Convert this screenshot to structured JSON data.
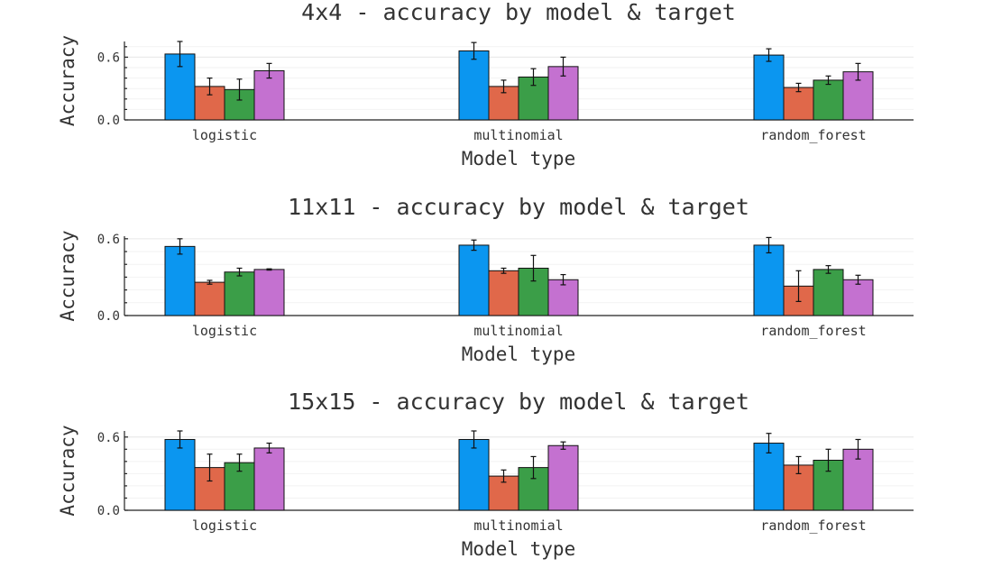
{
  "chart_data": [
    {
      "type": "bar",
      "title": "4x4 - accuracy by model & target",
      "xlabel": "Model type",
      "ylabel": "Accuracy",
      "ylim": [
        0,
        0.75
      ],
      "yticks": [
        "0.0",
        "0.6"
      ],
      "grid": true,
      "categories": [
        "logistic",
        "multinomial",
        "random_forest"
      ],
      "series": [
        {
          "color": "#0b96f0",
          "values": [
            0.63,
            0.66,
            0.62
          ],
          "errors": [
            0.12,
            0.08,
            0.06
          ]
        },
        {
          "color": "#e0684a",
          "values": [
            0.32,
            0.32,
            0.31
          ],
          "errors": [
            0.08,
            0.06,
            0.04
          ]
        },
        {
          "color": "#3b9e48",
          "values": [
            0.29,
            0.41,
            0.38
          ],
          "errors": [
            0.1,
            0.08,
            0.04
          ]
        },
        {
          "color": "#c471d0",
          "values": [
            0.47,
            0.51,
            0.46
          ],
          "errors": [
            0.07,
            0.09,
            0.08
          ]
        }
      ]
    },
    {
      "type": "bar",
      "title": "11x11 - accuracy by model & target",
      "xlabel": "Model type",
      "ylabel": "Accuracy",
      "ylim": [
        0,
        0.62
      ],
      "yticks": [
        "0.0",
        "0.6"
      ],
      "grid": true,
      "categories": [
        "logistic",
        "multinomial",
        "random_forest"
      ],
      "series": [
        {
          "color": "#0b96f0",
          "values": [
            0.54,
            0.55,
            0.55
          ],
          "errors": [
            0.06,
            0.04,
            0.06
          ]
        },
        {
          "color": "#e0684a",
          "values": [
            0.26,
            0.35,
            0.23
          ],
          "errors": [
            0.015,
            0.02,
            0.12
          ]
        },
        {
          "color": "#3b9e48",
          "values": [
            0.34,
            0.37,
            0.36
          ],
          "errors": [
            0.03,
            0.1,
            0.03
          ]
        },
        {
          "color": "#c471d0",
          "values": [
            0.36,
            0.28,
            0.28
          ],
          "errors": [
            0.005,
            0.04,
            0.035
          ]
        }
      ]
    },
    {
      "type": "bar",
      "title": "15x15 - accuracy by model & target",
      "xlabel": "Model type",
      "ylabel": "Accuracy",
      "ylim": [
        0,
        0.65
      ],
      "yticks": [
        "0.0",
        "0.6"
      ],
      "grid": true,
      "categories": [
        "logistic",
        "multinomial",
        "random_forest"
      ],
      "series": [
        {
          "color": "#0b96f0",
          "values": [
            0.58,
            0.58,
            0.55
          ],
          "errors": [
            0.07,
            0.07,
            0.08
          ]
        },
        {
          "color": "#e0684a",
          "values": [
            0.35,
            0.28,
            0.37
          ],
          "errors": [
            0.11,
            0.05,
            0.07
          ]
        },
        {
          "color": "#3b9e48",
          "values": [
            0.39,
            0.35,
            0.41
          ],
          "errors": [
            0.07,
            0.09,
            0.09
          ]
        },
        {
          "color": "#c471d0",
          "values": [
            0.51,
            0.53,
            0.5
          ],
          "errors": [
            0.04,
            0.03,
            0.08
          ]
        }
      ]
    }
  ]
}
